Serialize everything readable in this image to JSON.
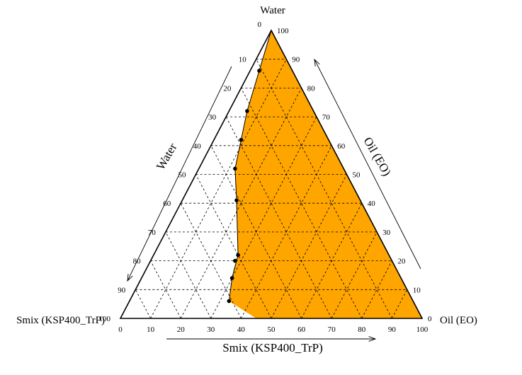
{
  "chart_data": {
    "type": "ternary",
    "vertex_labels": {
      "top": "Water",
      "left": "Smix (KSP400_TrP)",
      "right": "Oil (EO)"
    },
    "axis_titles": {
      "left": "Water",
      "right": "Oil (EO)",
      "bottom": "Smix (KSP400_TrP)"
    },
    "axis_ticks": {
      "left": [
        "0",
        "10",
        "20",
        "30",
        "40",
        "50",
        "60",
        "70",
        "80",
        "90",
        "100"
      ],
      "right": [
        "0",
        "10",
        "20",
        "30",
        "40",
        "50",
        "60",
        "70",
        "80",
        "90",
        "100"
      ],
      "bottom": [
        "0",
        "10",
        "20",
        "30",
        "40",
        "50",
        "60",
        "70",
        "80",
        "90",
        "100"
      ]
    },
    "grid": true,
    "grid_step": 10,
    "regions": [
      {
        "region_id": "orange-region",
        "color": "#FFA500",
        "boundary": [
          {
            "water": 100,
            "oil": 0,
            "smix": 0
          },
          {
            "water": 86,
            "oil": 3,
            "smix": 11
          },
          {
            "water": 72,
            "oil": 6,
            "smix": 22
          },
          {
            "water": 62,
            "oil": 9,
            "smix": 29
          },
          {
            "water": 52,
            "oil": 12,
            "smix": 36
          },
          {
            "water": 41,
            "oil": 18,
            "smix": 41
          },
          {
            "water": 22,
            "oil": 28,
            "smix": 50
          },
          {
            "water": 14,
            "oil": 30,
            "smix": 56
          },
          {
            "water": 6,
            "oil": 33,
            "smix": 61
          },
          {
            "water": 0,
            "oil": 45,
            "smix": 55
          },
          {
            "water": 0,
            "oil": 100,
            "smix": 0
          }
        ]
      },
      {
        "region_id": "green-region",
        "color": "#22EE22",
        "boundary": [
          {
            "water": 20,
            "oil": 28,
            "smix": 52
          },
          {
            "water": 14,
            "oil": 30,
            "smix": 56
          },
          {
            "water": 6,
            "oil": 33,
            "smix": 61
          }
        ]
      }
    ],
    "points": [
      {
        "water": 100,
        "oil": 0,
        "smix": 0
      },
      {
        "water": 86,
        "oil": 3,
        "smix": 11
      },
      {
        "water": 72,
        "oil": 6,
        "smix": 22
      },
      {
        "water": 62,
        "oil": 9,
        "smix": 29
      },
      {
        "water": 52,
        "oil": 12,
        "smix": 36
      },
      {
        "water": 41,
        "oil": 18,
        "smix": 41
      },
      {
        "water": 22,
        "oil": 28,
        "smix": 50
      },
      {
        "water": 14,
        "oil": 30,
        "smix": 56
      },
      {
        "water": 6,
        "oil": 33,
        "smix": 61
      }
    ]
  }
}
